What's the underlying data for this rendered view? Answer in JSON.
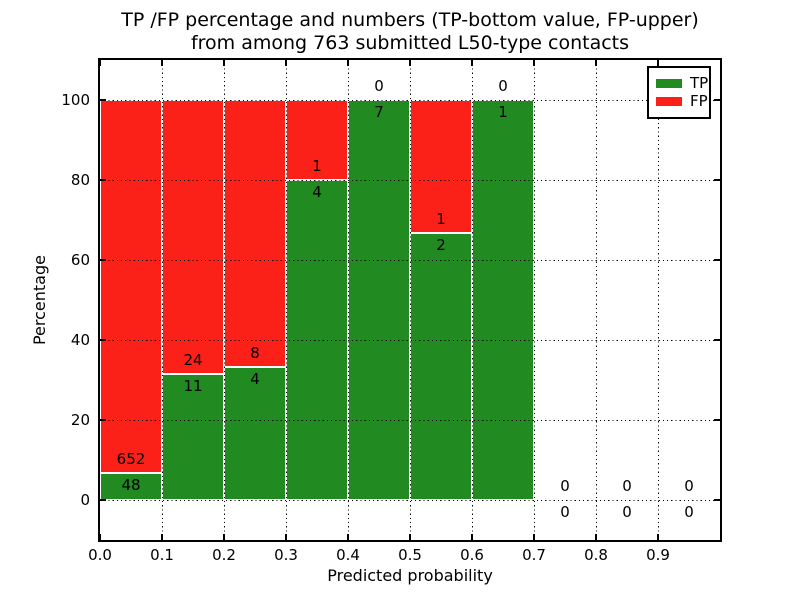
{
  "figure": {
    "title_line1": "TP /FP percentage and numbers (TP-bottom value, FP-upper)",
    "title_line2": "from among 763 submitted L50-type contacts"
  },
  "chart_data": {
    "type": "bar",
    "stacked": true,
    "title": "TP /FP percentage and numbers (TP-bottom value, FP-upper) from among 763 submitted L50-type contacts",
    "xlabel": "Predicted probability",
    "ylabel": "Percentage",
    "total_submitted": 763,
    "xlim": [
      0.0,
      1.0
    ],
    "ylim": [
      -10,
      110
    ],
    "bin_width": 0.1,
    "grid": "dotted",
    "categories": [
      "0.0-0.1",
      "0.1-0.2",
      "0.2-0.3",
      "0.3-0.4",
      "0.4-0.5",
      "0.5-0.6",
      "0.6-0.7",
      "0.7-0.8",
      "0.8-0.9",
      "0.9-1.0"
    ],
    "x_tick_values": [
      0.0,
      0.1,
      0.2,
      0.3,
      0.4,
      0.5,
      0.6,
      0.7,
      0.8,
      0.9
    ],
    "x_ticks": [
      "0.0",
      "0.1",
      "0.2",
      "0.3",
      "0.4",
      "0.5",
      "0.6",
      "0.7",
      "0.8",
      "0.9"
    ],
    "y_tick_values": [
      0,
      20,
      40,
      60,
      80,
      100
    ],
    "y_ticks": [
      "0",
      "20",
      "40",
      "60",
      "80",
      "100"
    ],
    "series": [
      {
        "name": "TP",
        "color": "#218a21",
        "values": [
          48,
          11,
          4,
          4,
          7,
          2,
          1,
          0,
          0,
          0
        ]
      },
      {
        "name": "FP",
        "color": "#fb2018",
        "values": [
          652,
          24,
          8,
          1,
          0,
          1,
          0,
          0,
          0,
          0
        ]
      }
    ],
    "tp_percentages": [
      6.86,
      31.43,
      33.33,
      80.0,
      100.0,
      66.67,
      100.0,
      0,
      0,
      0
    ],
    "legend": {
      "position": "upper right",
      "entries": [
        {
          "label": "TP",
          "color": "#218a21"
        },
        {
          "label": "FP",
          "color": "#fb2018"
        }
      ]
    }
  },
  "colors": {
    "tp": "#218a21",
    "fp": "#fb2018",
    "axis": "#000000",
    "grid": "#000000",
    "text": "#000000",
    "background": "#ffffff"
  }
}
